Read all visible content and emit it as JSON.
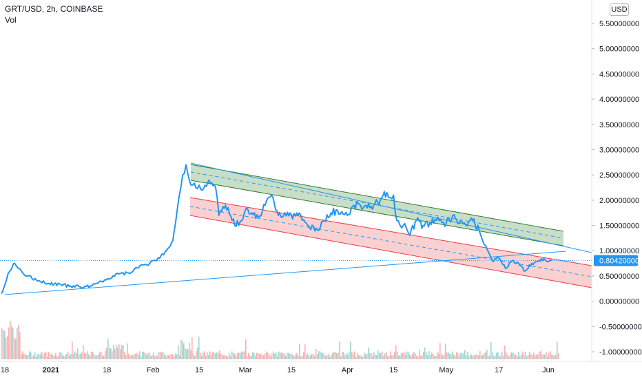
{
  "header": {
    "title": "GRT/USD, 2h, COINBASE",
    "volume_label": "Vol",
    "currency_button": "USD"
  },
  "price_axis": {
    "ticks": [
      "5.50000000",
      "5.00000000",
      "4.50000000",
      "4.00000000",
      "3.50000000",
      "3.00000000",
      "2.50000000",
      "2.00000000",
      "1.50000000",
      "1.00000000",
      "0.50000000",
      "0.00000000",
      "-0.50000000",
      "-1.00000000"
    ],
    "tick_values": [
      5.5,
      5.0,
      4.5,
      4.0,
      3.5,
      3.0,
      2.5,
      2.0,
      1.5,
      1.0,
      0.5,
      0.0,
      -0.5,
      -1.0
    ],
    "current_price_label": "0.80420000",
    "current_price": 0.8042
  },
  "time_axis": {
    "ticks": [
      "18",
      "2021",
      "18",
      "Feb",
      "15",
      "Mar",
      "15",
      "Apr",
      "15",
      "May",
      "17",
      "Jun"
    ],
    "tick_dates": [
      "2020-12-18",
      "2021-01-01",
      "2021-01-18",
      "2021-02-01",
      "2021-02-15",
      "2021-03-01",
      "2021-03-15",
      "2021-04-01",
      "2021-04-15",
      "2021-05-01",
      "2021-05-17",
      "2021-06-01"
    ]
  },
  "colors": {
    "price_line": "#2196f3",
    "upper_channel_fill": "#b7d3b4",
    "upper_channel_edge": "#2e7d32",
    "lower_channel_fill": "#f7b9b9",
    "lower_channel_edge": "#f23645",
    "trendline": "#2196f3",
    "price_label_bg": "#2196f3"
  },
  "chart_data": {
    "type": "line",
    "title": "GRT/USD, 2h, COINBASE",
    "xlabel": "",
    "ylabel": "",
    "ylim": [
      -1.05,
      5.7
    ],
    "x_range": [
      "2020-12-17",
      "2021-06-06"
    ],
    "grid": false,
    "series": [
      {
        "x": [
          "2020-12-17",
          "2020-12-19",
          "2020-12-21",
          "2020-12-23",
          "2020-12-25",
          "2020-12-28",
          "2020-12-31",
          "2021-01-04",
          "2021-01-07",
          "2021-01-10",
          "2021-01-13",
          "2021-01-16",
          "2021-01-19",
          "2021-01-22",
          "2021-01-25",
          "2021-01-28",
          "2021-01-31",
          "2021-02-03",
          "2021-02-05",
          "2021-02-07",
          "2021-02-09",
          "2021-02-10",
          "2021-02-11",
          "2021-02-12",
          "2021-02-13",
          "2021-02-14",
          "2021-02-15",
          "2021-02-16",
          "2021-02-18",
          "2021-02-20",
          "2021-02-21",
          "2021-02-23",
          "2021-02-25",
          "2021-02-27",
          "2021-03-01",
          "2021-03-03",
          "2021-03-05",
          "2021-03-07",
          "2021-03-09",
          "2021-03-11",
          "2021-03-13",
          "2021-03-15",
          "2021-03-17",
          "2021-03-20",
          "2021-03-23",
          "2021-03-25",
          "2021-03-27",
          "2021-03-29",
          "2021-04-01",
          "2021-04-03",
          "2021-04-05",
          "2021-04-07",
          "2021-04-09",
          "2021-04-11",
          "2021-04-13",
          "2021-04-14",
          "2021-04-15",
          "2021-04-16",
          "2021-04-17",
          "2021-04-18",
          "2021-04-20",
          "2021-04-22",
          "2021-04-24",
          "2021-04-26",
          "2021-04-28",
          "2021-05-01",
          "2021-05-03",
          "2021-05-05",
          "2021-05-07",
          "2021-05-09",
          "2021-05-11",
          "2021-05-13",
          "2021-05-15",
          "2021-05-17",
          "2021-05-19",
          "2021-05-21",
          "2021-05-23",
          "2021-05-25",
          "2021-05-27",
          "2021-05-29",
          "2021-05-31",
          "2021-06-02"
        ],
        "values": [
          0.15,
          0.55,
          0.75,
          0.6,
          0.5,
          0.4,
          0.35,
          0.33,
          0.3,
          0.28,
          0.3,
          0.4,
          0.45,
          0.55,
          0.55,
          0.7,
          0.75,
          0.85,
          1.0,
          1.2,
          2.1,
          2.5,
          2.7,
          2.4,
          2.3,
          2.25,
          2.3,
          2.2,
          2.4,
          2.25,
          1.7,
          1.9,
          1.6,
          1.5,
          1.8,
          1.75,
          1.65,
          1.9,
          2.1,
          1.7,
          1.75,
          1.7,
          1.7,
          1.5,
          1.4,
          1.6,
          1.75,
          1.8,
          1.7,
          1.9,
          1.9,
          1.85,
          1.9,
          2.0,
          2.15,
          2.05,
          2.1,
          1.6,
          1.5,
          1.5,
          1.3,
          1.6,
          1.5,
          1.55,
          1.6,
          1.55,
          1.7,
          1.55,
          1.5,
          1.6,
          1.4,
          1.1,
          0.8,
          0.85,
          0.65,
          0.8,
          0.75,
          0.6,
          0.75,
          0.8,
          0.82,
          0.8042
        ]
      }
    ]
  }
}
